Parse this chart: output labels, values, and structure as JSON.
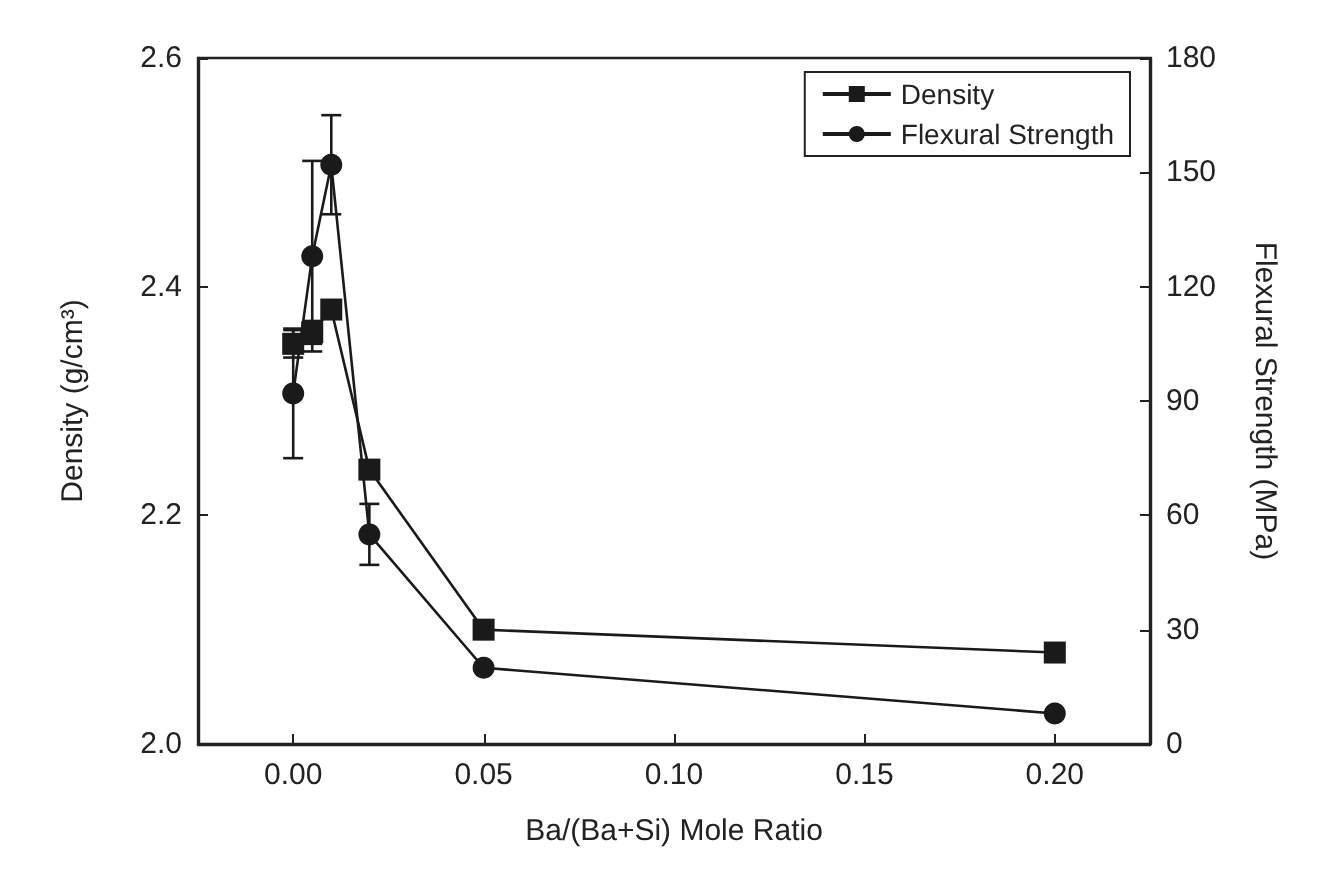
{
  "chart_data": {
    "type": "line",
    "xlabel": "Ba/(Ba+Si) Mole Ratio",
    "ylabel": "Density (g/cm³)",
    "y2label": "Flexural Strength (MPa)",
    "x": [
      0,
      0.005,
      0.01,
      0.02,
      0.05,
      0.2
    ],
    "series": [
      {
        "name": "Density",
        "color": "#1a1a1a",
        "marker": "square",
        "values": [
          2.35,
          2.36,
          2.38,
          2.24,
          2.1,
          2.08
        ],
        "errors": [
          0.012,
          0.01,
          null,
          null,
          null,
          null
        ]
      },
      {
        "name": "Flexural Strength",
        "color": "#1a1a1a",
        "marker": "circle",
        "axis": "y2",
        "values": [
          92,
          128,
          152,
          55,
          20,
          8
        ],
        "errors": [
          17,
          25,
          13,
          8,
          null,
          null
        ]
      }
    ],
    "xlim": [
      -0.025,
      0.225
    ],
    "xticks": [
      {
        "value": 0,
        "label": "0.00"
      },
      {
        "value": 0.05,
        "label": "0.05"
      },
      {
        "value": 0.1,
        "label": "0.10"
      },
      {
        "value": 0.15,
        "label": "0.15"
      },
      {
        "value": 0.2,
        "label": "0.20"
      }
    ],
    "ylim": [
      2.0,
      2.6
    ],
    "yticks": [
      {
        "value": 2.0,
        "label": "2.0"
      },
      {
        "value": 2.2,
        "label": "2.2"
      },
      {
        "value": 2.4,
        "label": "2.4"
      },
      {
        "value": 2.6,
        "label": "2.6"
      }
    ],
    "y2lim": [
      0,
      180
    ],
    "y2ticks": [
      0,
      30,
      60,
      90,
      120,
      150,
      180
    ],
    "legend": "top right",
    "grid": false,
    "line_style": "solid"
  }
}
